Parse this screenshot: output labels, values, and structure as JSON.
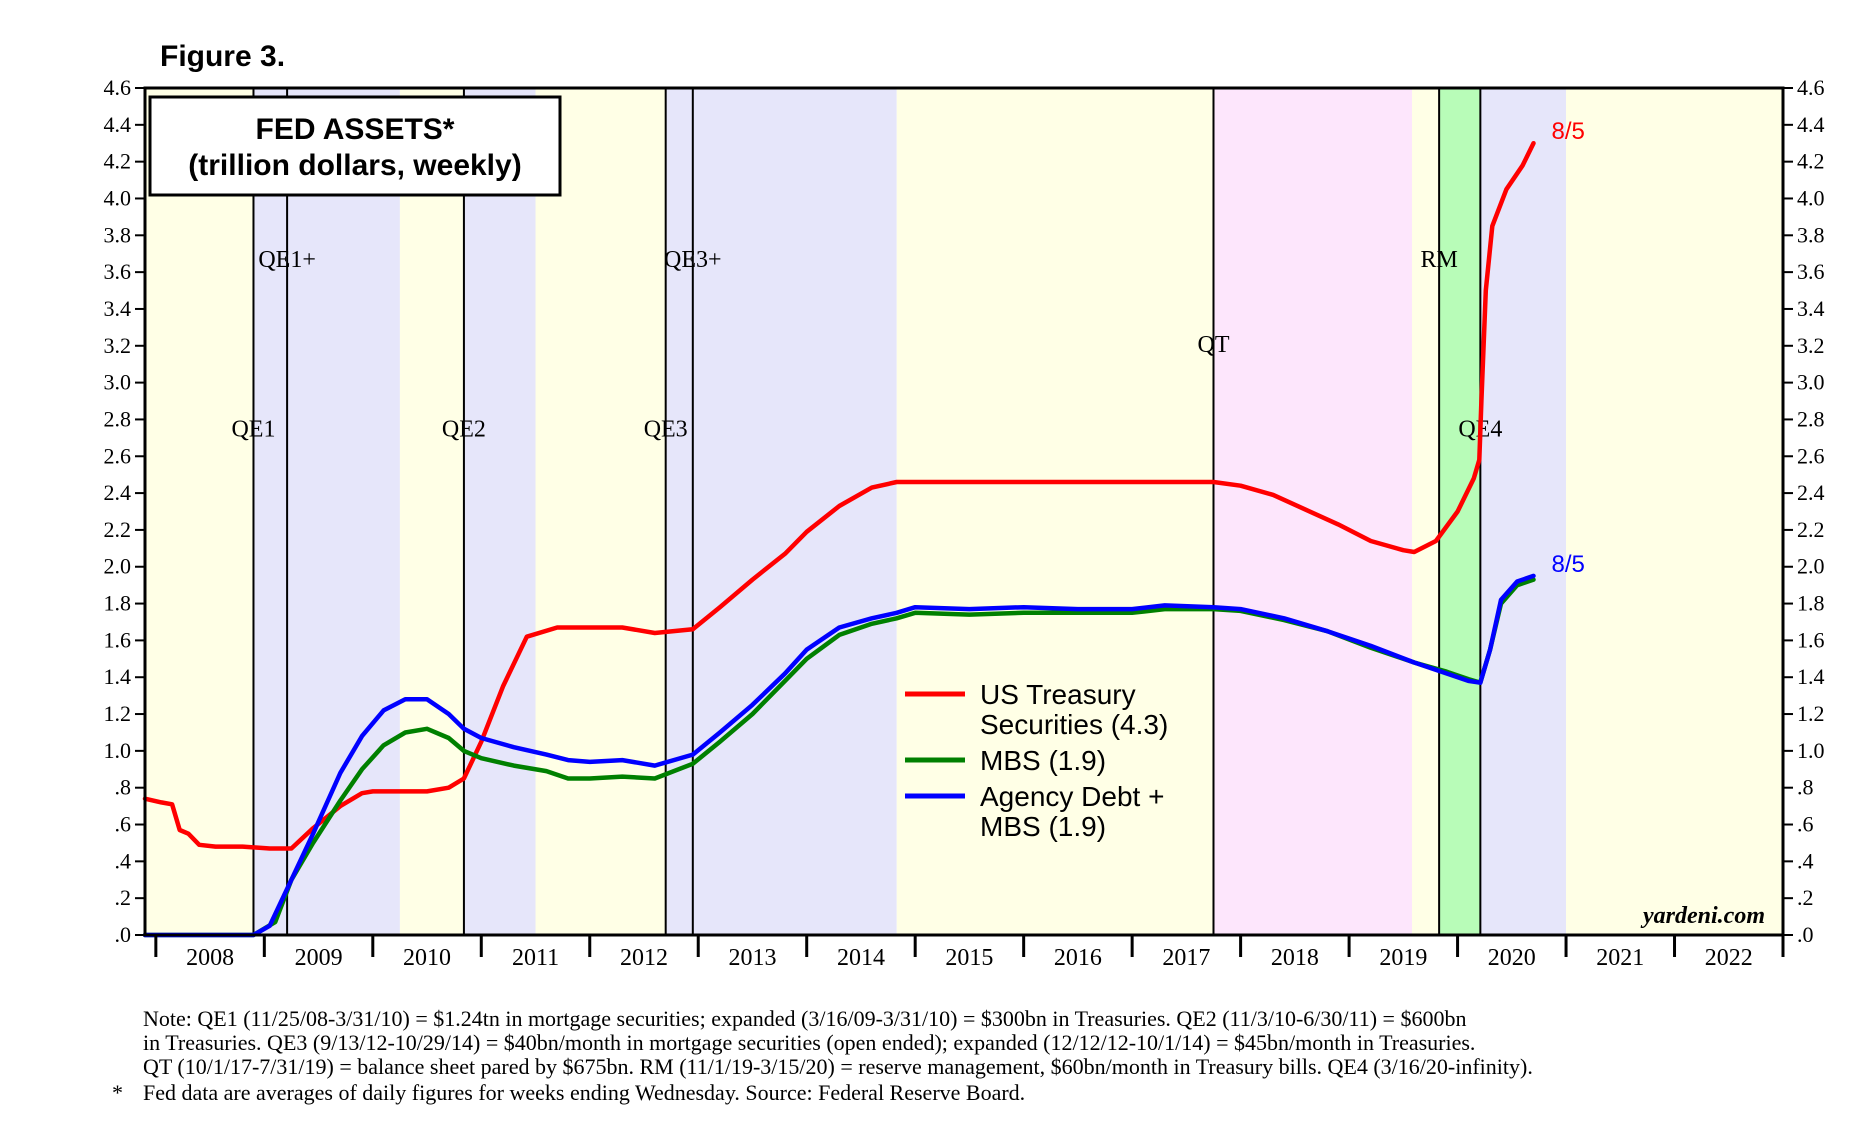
{
  "figure_label": "Figure 3.",
  "chart_data": {
    "type": "line",
    "title": "FED ASSETS*",
    "subtitle": "(trillion dollars, weekly)",
    "x_range": [
      2007.9,
      2023.0
    ],
    "ylim": [
      0,
      4.6
    ],
    "y_ticks": [
      ".0",
      ".2",
      ".4",
      ".6",
      ".8",
      "1.0",
      "1.2",
      "1.4",
      "1.6",
      "1.8",
      "2.0",
      "2.2",
      "2.4",
      "2.6",
      "2.8",
      "3.0",
      "3.2",
      "3.4",
      "3.6",
      "3.8",
      "4.0",
      "4.2",
      "4.4",
      "4.6"
    ],
    "x_ticks": [
      "2008",
      "2009",
      "2010",
      "2011",
      "2012",
      "2013",
      "2014",
      "2015",
      "2016",
      "2017",
      "2018",
      "2019",
      "2020",
      "2021",
      "2022"
    ],
    "colors": {
      "treasury": "#ff0000",
      "mbs": "#008000",
      "agency": "#0000ff",
      "band_yellow": "#ffffe6",
      "band_blue": "#e6e6fa",
      "band_pink": "#fde6fc",
      "band_green": "#b8fcb8"
    },
    "bands": [
      {
        "from": 2007.9,
        "to": 2008.9,
        "color": "band_yellow"
      },
      {
        "from": 2008.9,
        "to": 2010.25,
        "color": "band_blue"
      },
      {
        "from": 2010.25,
        "to": 2010.84,
        "color": "band_yellow"
      },
      {
        "from": 2010.84,
        "to": 2011.5,
        "color": "band_blue"
      },
      {
        "from": 2011.5,
        "to": 2012.7,
        "color": "band_yellow"
      },
      {
        "from": 2012.7,
        "to": 2014.83,
        "color": "band_blue"
      },
      {
        "from": 2014.83,
        "to": 2017.75,
        "color": "band_yellow"
      },
      {
        "from": 2017.75,
        "to": 2019.58,
        "color": "band_pink"
      },
      {
        "from": 2019.58,
        "to": 2019.83,
        "color": "band_yellow"
      },
      {
        "from": 2019.83,
        "to": 2020.21,
        "color": "band_green"
      },
      {
        "from": 2020.21,
        "to": 2021.0,
        "color": "band_blue"
      },
      {
        "from": 2021.0,
        "to": 2023.0,
        "color": "band_yellow"
      }
    ],
    "events": [
      {
        "label": "QE1",
        "x": 2008.9,
        "label_y": 2.75
      },
      {
        "label": "QE1+",
        "x": 2009.21,
        "label_y": 3.67
      },
      {
        "label": "QE2",
        "x": 2010.84,
        "label_y": 2.75
      },
      {
        "label": "QE3",
        "x": 2012.7,
        "label_y": 2.75
      },
      {
        "label": "QE3+",
        "x": 2012.95,
        "label_y": 3.67
      },
      {
        "label": "QT",
        "x": 2017.75,
        "label_y": 3.21
      },
      {
        "label": "RM",
        "x": 2019.83,
        "label_y": 3.67
      },
      {
        "label": "QE4",
        "x": 2020.21,
        "label_y": 2.75
      }
    ],
    "series": [
      {
        "name": "US Treasury Securities (4.3)",
        "key": "treasury",
        "points": [
          [
            2007.9,
            0.74
          ],
          [
            2008.05,
            0.72
          ],
          [
            2008.15,
            0.71
          ],
          [
            2008.22,
            0.57
          ],
          [
            2008.3,
            0.55
          ],
          [
            2008.4,
            0.49
          ],
          [
            2008.55,
            0.48
          ],
          [
            2008.8,
            0.48
          ],
          [
            2009.05,
            0.47
          ],
          [
            2009.25,
            0.47
          ],
          [
            2009.45,
            0.58
          ],
          [
            2009.7,
            0.7
          ],
          [
            2009.9,
            0.77
          ],
          [
            2010.0,
            0.78
          ],
          [
            2010.5,
            0.78
          ],
          [
            2010.7,
            0.8
          ],
          [
            2010.84,
            0.85
          ],
          [
            2011.0,
            1.05
          ],
          [
            2011.2,
            1.35
          ],
          [
            2011.42,
            1.62
          ],
          [
            2011.7,
            1.67
          ],
          [
            2012.0,
            1.67
          ],
          [
            2012.3,
            1.67
          ],
          [
            2012.6,
            1.64
          ],
          [
            2012.95,
            1.66
          ],
          [
            2013.2,
            1.78
          ],
          [
            2013.5,
            1.93
          ],
          [
            2013.8,
            2.07
          ],
          [
            2014.0,
            2.19
          ],
          [
            2014.3,
            2.33
          ],
          [
            2014.6,
            2.43
          ],
          [
            2014.83,
            2.46
          ],
          [
            2015.5,
            2.46
          ],
          [
            2016.5,
            2.46
          ],
          [
            2017.3,
            2.46
          ],
          [
            2017.75,
            2.46
          ],
          [
            2018.0,
            2.44
          ],
          [
            2018.3,
            2.39
          ],
          [
            2018.6,
            2.31
          ],
          [
            2018.9,
            2.23
          ],
          [
            2019.2,
            2.14
          ],
          [
            2019.5,
            2.09
          ],
          [
            2019.6,
            2.08
          ],
          [
            2019.8,
            2.14
          ],
          [
            2020.0,
            2.3
          ],
          [
            2020.15,
            2.48
          ],
          [
            2020.2,
            2.58
          ],
          [
            2020.22,
            2.9
          ],
          [
            2020.26,
            3.5
          ],
          [
            2020.32,
            3.85
          ],
          [
            2020.45,
            4.05
          ],
          [
            2020.6,
            4.18
          ],
          [
            2020.7,
            4.3
          ]
        ]
      },
      {
        "name": "MBS (1.9)",
        "key": "mbs",
        "points": [
          [
            2007.9,
            0.0
          ],
          [
            2008.9,
            0.0
          ],
          [
            2009.1,
            0.07
          ],
          [
            2009.25,
            0.3
          ],
          [
            2009.45,
            0.5
          ],
          [
            2009.7,
            0.73
          ],
          [
            2009.9,
            0.9
          ],
          [
            2010.1,
            1.03
          ],
          [
            2010.3,
            1.1
          ],
          [
            2010.5,
            1.12
          ],
          [
            2010.7,
            1.07
          ],
          [
            2010.84,
            1.0
          ],
          [
            2011.0,
            0.96
          ],
          [
            2011.3,
            0.92
          ],
          [
            2011.6,
            0.89
          ],
          [
            2011.8,
            0.85
          ],
          [
            2012.0,
            0.85
          ],
          [
            2012.3,
            0.86
          ],
          [
            2012.6,
            0.85
          ],
          [
            2012.95,
            0.93
          ],
          [
            2013.2,
            1.05
          ],
          [
            2013.5,
            1.2
          ],
          [
            2013.8,
            1.38
          ],
          [
            2014.0,
            1.5
          ],
          [
            2014.3,
            1.63
          ],
          [
            2014.6,
            1.69
          ],
          [
            2014.83,
            1.72
          ],
          [
            2015.0,
            1.75
          ],
          [
            2015.5,
            1.74
          ],
          [
            2016.0,
            1.75
          ],
          [
            2016.5,
            1.75
          ],
          [
            2017.0,
            1.75
          ],
          [
            2017.3,
            1.77
          ],
          [
            2017.75,
            1.77
          ],
          [
            2018.0,
            1.76
          ],
          [
            2018.4,
            1.71
          ],
          [
            2018.8,
            1.65
          ],
          [
            2019.2,
            1.56
          ],
          [
            2019.6,
            1.48
          ],
          [
            2019.9,
            1.43
          ],
          [
            2020.1,
            1.39
          ],
          [
            2020.21,
            1.37
          ],
          [
            2020.3,
            1.55
          ],
          [
            2020.4,
            1.8
          ],
          [
            2020.55,
            1.9
          ],
          [
            2020.7,
            1.93
          ]
        ]
      },
      {
        "name": "Agency Debt + MBS (1.9)",
        "key": "agency",
        "points": [
          [
            2007.9,
            0.0
          ],
          [
            2008.9,
            0.0
          ],
          [
            2009.05,
            0.05
          ],
          [
            2009.25,
            0.3
          ],
          [
            2009.45,
            0.55
          ],
          [
            2009.7,
            0.88
          ],
          [
            2009.9,
            1.08
          ],
          [
            2010.1,
            1.22
          ],
          [
            2010.3,
            1.28
          ],
          [
            2010.5,
            1.28
          ],
          [
            2010.7,
            1.2
          ],
          [
            2010.84,
            1.12
          ],
          [
            2011.0,
            1.07
          ],
          [
            2011.3,
            1.02
          ],
          [
            2011.6,
            0.98
          ],
          [
            2011.8,
            0.95
          ],
          [
            2012.0,
            0.94
          ],
          [
            2012.3,
            0.95
          ],
          [
            2012.6,
            0.92
          ],
          [
            2012.95,
            0.98
          ],
          [
            2013.2,
            1.1
          ],
          [
            2013.5,
            1.25
          ],
          [
            2013.8,
            1.42
          ],
          [
            2014.0,
            1.55
          ],
          [
            2014.3,
            1.67
          ],
          [
            2014.6,
            1.72
          ],
          [
            2014.83,
            1.75
          ],
          [
            2015.0,
            1.78
          ],
          [
            2015.5,
            1.77
          ],
          [
            2016.0,
            1.78
          ],
          [
            2016.5,
            1.77
          ],
          [
            2017.0,
            1.77
          ],
          [
            2017.3,
            1.79
          ],
          [
            2017.75,
            1.78
          ],
          [
            2018.0,
            1.77
          ],
          [
            2018.4,
            1.72
          ],
          [
            2018.8,
            1.65
          ],
          [
            2019.2,
            1.57
          ],
          [
            2019.6,
            1.48
          ],
          [
            2019.9,
            1.42
          ],
          [
            2020.1,
            1.38
          ],
          [
            2020.21,
            1.37
          ],
          [
            2020.3,
            1.55
          ],
          [
            2020.4,
            1.82
          ],
          [
            2020.55,
            1.92
          ],
          [
            2020.7,
            1.95
          ]
        ]
      }
    ],
    "end_labels": [
      {
        "text": "8/5",
        "series": "treasury",
        "y": 4.3
      },
      {
        "text": "8/5",
        "series": "agency",
        "y": 1.95
      }
    ],
    "legend": [
      {
        "key": "treasury",
        "lines": [
          "US Treasury",
          "Securities (4.3)"
        ]
      },
      {
        "key": "mbs",
        "lines": [
          "MBS (1.9)"
        ]
      },
      {
        "key": "agency",
        "lines": [
          "Agency Debt +",
          "MBS (1.9)"
        ]
      }
    ],
    "source_label": "yardeni.com"
  },
  "notes": [
    "Note: QE1 (11/25/08-3/31/10) = $1.24tn in mortgage securities; expanded (3/16/09-3/31/10) = $300bn in Treasuries. QE2 (11/3/10-6/30/11) = $600bn",
    "in Treasuries. QE3 (9/13/12-10/29/14) = $40bn/month in mortgage securities (open ended); expanded (12/12/12-10/1/14) = $45bn/month in Treasuries.",
    "QT (10/1/17-7/31/19) = balance sheet pared by $675bn. RM (11/1/19-3/15/20) = reserve management, $60bn/month in Treasury bills. QE4 (3/16/20-infinity)."
  ],
  "footnote_mark": "*",
  "footnote": "Fed data are averages of daily figures for weeks ending Wednesday. Source: Federal Reserve Board."
}
